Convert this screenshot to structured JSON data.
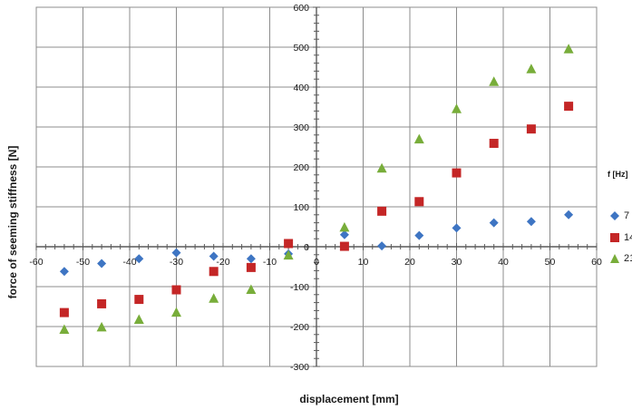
{
  "chart_data": {
    "type": "scatter",
    "xlabel": "displacement [mm]",
    "ylabel": "force of seeming stiffness [N]",
    "xlim": [
      -60,
      60
    ],
    "ylim": [
      -300,
      600
    ],
    "xticks": [
      -60,
      -50,
      -40,
      -30,
      -20,
      -10,
      0,
      10,
      20,
      30,
      40,
      50,
      60
    ],
    "yticks": [
      -300,
      -200,
      -100,
      0,
      100,
      200,
      300,
      400,
      500,
      600
    ],
    "grid": true,
    "legend_title": "f [Hz]",
    "legend_position": "right",
    "series": [
      {
        "name": "7",
        "color": "#3e75c3",
        "marker": "diamond",
        "points": [
          [
            -54,
            -62
          ],
          [
            -46,
            -42
          ],
          [
            -38,
            -30
          ],
          [
            -30,
            -15
          ],
          [
            -22,
            -24
          ],
          [
            -14,
            -30
          ],
          [
            -6,
            -18
          ],
          [
            6,
            30
          ],
          [
            14,
            2
          ],
          [
            22,
            28
          ],
          [
            30,
            47
          ],
          [
            38,
            60
          ],
          [
            46,
            63
          ],
          [
            54,
            80
          ]
        ]
      },
      {
        "name": "14",
        "color": "#c42626",
        "marker": "square",
        "points": [
          [
            -54,
            -165
          ],
          [
            -46,
            -143
          ],
          [
            -38,
            -132
          ],
          [
            -30,
            -108
          ],
          [
            -22,
            -62
          ],
          [
            -14,
            -52
          ],
          [
            -6,
            8
          ],
          [
            6,
            1
          ],
          [
            14,
            89
          ],
          [
            22,
            113
          ],
          [
            30,
            185
          ],
          [
            38,
            259
          ],
          [
            46,
            295
          ],
          [
            54,
            352
          ]
        ]
      },
      {
        "name": "21",
        "color": "#78ad3a",
        "marker": "triangle",
        "points": [
          [
            -54,
            -208
          ],
          [
            -46,
            -202
          ],
          [
            -38,
            -183
          ],
          [
            -30,
            -165
          ],
          [
            -22,
            -130
          ],
          [
            -14,
            -108
          ],
          [
            -6,
            -22
          ],
          [
            6,
            48
          ],
          [
            14,
            196
          ],
          [
            22,
            269
          ],
          [
            30,
            345
          ],
          [
            38,
            413
          ],
          [
            46,
            445
          ],
          [
            54,
            495
          ]
        ]
      }
    ]
  }
}
